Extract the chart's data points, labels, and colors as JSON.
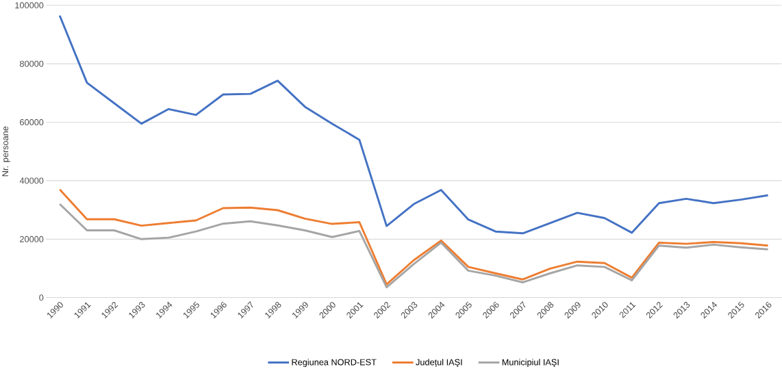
{
  "chart_data": {
    "type": "line",
    "ylabel": "Nr. persoane",
    "categories": [
      "1990",
      "1991",
      "1992",
      "1993",
      "1994",
      "1995",
      "1996",
      "1997",
      "1998",
      "1999",
      "2000",
      "2001",
      "2002",
      "2003",
      "2004",
      "2005",
      "2006",
      "2007",
      "2008",
      "2009",
      "2010",
      "2011",
      "2012",
      "2013",
      "2014",
      "2015",
      "2016"
    ],
    "series": [
      {
        "name": "Regiunea NORD-EST",
        "color": "#4472c4",
        "values": [
          96500,
          73500,
          66500,
          59500,
          64500,
          62500,
          69500,
          69700,
          74200,
          65300,
          59500,
          54000,
          24500,
          32000,
          36800,
          26700,
          22600,
          22000,
          25500,
          29000,
          27200,
          22200,
          32300,
          33800,
          32300,
          33500,
          35000
        ]
      },
      {
        "name": "Județul IAŞI",
        "color": "#ed7d31",
        "values": [
          37000,
          26800,
          26800,
          24600,
          25500,
          26400,
          30600,
          30800,
          29900,
          27000,
          25200,
          25800,
          4500,
          12800,
          19500,
          10500,
          8300,
          6200,
          9900,
          12300,
          11800,
          6800,
          18800,
          18400,
          19000,
          18600,
          17800
        ]
      },
      {
        "name": "Municipiul IAŞI",
        "color": "#a5a5a5",
        "values": [
          32000,
          23000,
          23000,
          20000,
          20500,
          22600,
          25300,
          26100,
          24700,
          23000,
          20700,
          22800,
          3500,
          11500,
          18800,
          9200,
          7500,
          5200,
          8300,
          11000,
          10500,
          5900,
          17800,
          17100,
          18100,
          17200,
          16500
        ]
      }
    ],
    "ylim": [
      0,
      100000
    ],
    "yticks": [
      0,
      20000,
      40000,
      60000,
      80000,
      100000
    ],
    "grid": "y",
    "legend": "bottom",
    "marker": "none",
    "line_style": "solid"
  }
}
